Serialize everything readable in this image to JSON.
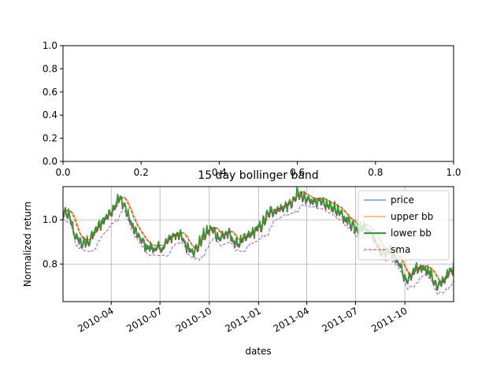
{
  "colors": {
    "price": "#1f77b4",
    "upper": "#ff7f0e",
    "lower": "#2ca02c",
    "sma": "#d62728",
    "band2": "#9467bd",
    "band3": "#8c564b",
    "grid": "#b0b0b0"
  },
  "chart_data": [
    {
      "type": "line",
      "title": "",
      "xlabel": "",
      "ylabel": "",
      "xlim": [
        0.0,
        1.0
      ],
      "ylim": [
        0.0,
        1.0
      ],
      "xticks": [
        "0.0",
        "0.2",
        "0.4",
        "0.6",
        "0.8",
        "1.0"
      ],
      "yticks": [
        "0.0",
        "0.2",
        "0.4",
        "0.6",
        "0.8",
        "1.0"
      ],
      "series": []
    },
    {
      "type": "line",
      "title": "15 day bollinger band",
      "xlabel": "dates",
      "ylabel": "Normalized return",
      "xlim": [
        "2010-01-01",
        "2011-12-31"
      ],
      "ylim": [
        0.63,
        1.15
      ],
      "grid": true,
      "legend": "top-right",
      "yticks": [
        "0.8",
        "1.0"
      ],
      "xticks": [
        "2010-04",
        "2010-07",
        "2010-10",
        "2011-01",
        "2011-04",
        "2011-07",
        "2011-10"
      ],
      "price_anchors": [
        [
          "2010-01-01",
          1.03
        ],
        [
          "2010-01-12",
          1.02
        ],
        [
          "2010-01-25",
          0.92
        ],
        [
          "2010-02-08",
          0.89
        ],
        [
          "2010-02-20",
          0.91
        ],
        [
          "2010-03-05",
          0.96
        ],
        [
          "2010-03-18",
          1.0
        ],
        [
          "2010-04-01",
          1.04
        ],
        [
          "2010-04-15",
          1.1
        ],
        [
          "2010-04-25",
          1.07
        ],
        [
          "2010-05-07",
          0.99
        ],
        [
          "2010-05-20",
          0.93
        ],
        [
          "2010-06-05",
          0.88
        ],
        [
          "2010-06-20",
          0.87
        ],
        [
          "2010-07-05",
          0.87
        ],
        [
          "2010-07-20",
          0.92
        ],
        [
          "2010-08-05",
          0.94
        ],
        [
          "2010-08-20",
          0.88
        ],
        [
          "2010-09-05",
          0.86
        ],
        [
          "2010-09-20",
          0.93
        ],
        [
          "2010-10-05",
          0.96
        ],
        [
          "2010-10-20",
          0.92
        ],
        [
          "2010-11-05",
          0.94
        ],
        [
          "2010-11-20",
          0.89
        ],
        [
          "2010-12-05",
          0.91
        ],
        [
          "2010-12-20",
          0.94
        ],
        [
          "2011-01-05",
          0.97
        ],
        [
          "2011-01-20",
          1.03
        ],
        [
          "2011-02-05",
          1.05
        ],
        [
          "2011-02-20",
          1.06
        ],
        [
          "2011-03-05",
          1.08
        ],
        [
          "2011-03-15",
          1.12
        ],
        [
          "2011-03-30",
          1.09
        ],
        [
          "2011-04-15",
          1.09
        ],
        [
          "2011-05-01",
          1.07
        ],
        [
          "2011-05-20",
          1.06
        ],
        [
          "2011-06-05",
          1.02
        ],
        [
          "2011-06-20",
          0.99
        ],
        [
          "2011-07-05",
          0.96
        ],
        [
          "2011-07-20",
          0.97
        ],
        [
          "2011-08-05",
          0.92
        ],
        [
          "2011-08-20",
          0.85
        ],
        [
          "2011-09-05",
          0.86
        ],
        [
          "2011-09-20",
          0.8
        ],
        [
          "2011-10-05",
          0.72
        ],
        [
          "2011-10-20",
          0.77
        ],
        [
          "2011-11-05",
          0.79
        ],
        [
          "2011-11-20",
          0.75
        ],
        [
          "2011-12-01",
          0.69
        ],
        [
          "2011-12-15",
          0.74
        ],
        [
          "2011-12-31",
          0.78
        ]
      ],
      "series": [
        {
          "name": "price"
        },
        {
          "name": "upper bb"
        },
        {
          "name": "lower bb"
        },
        {
          "name": "sma"
        }
      ]
    }
  ]
}
